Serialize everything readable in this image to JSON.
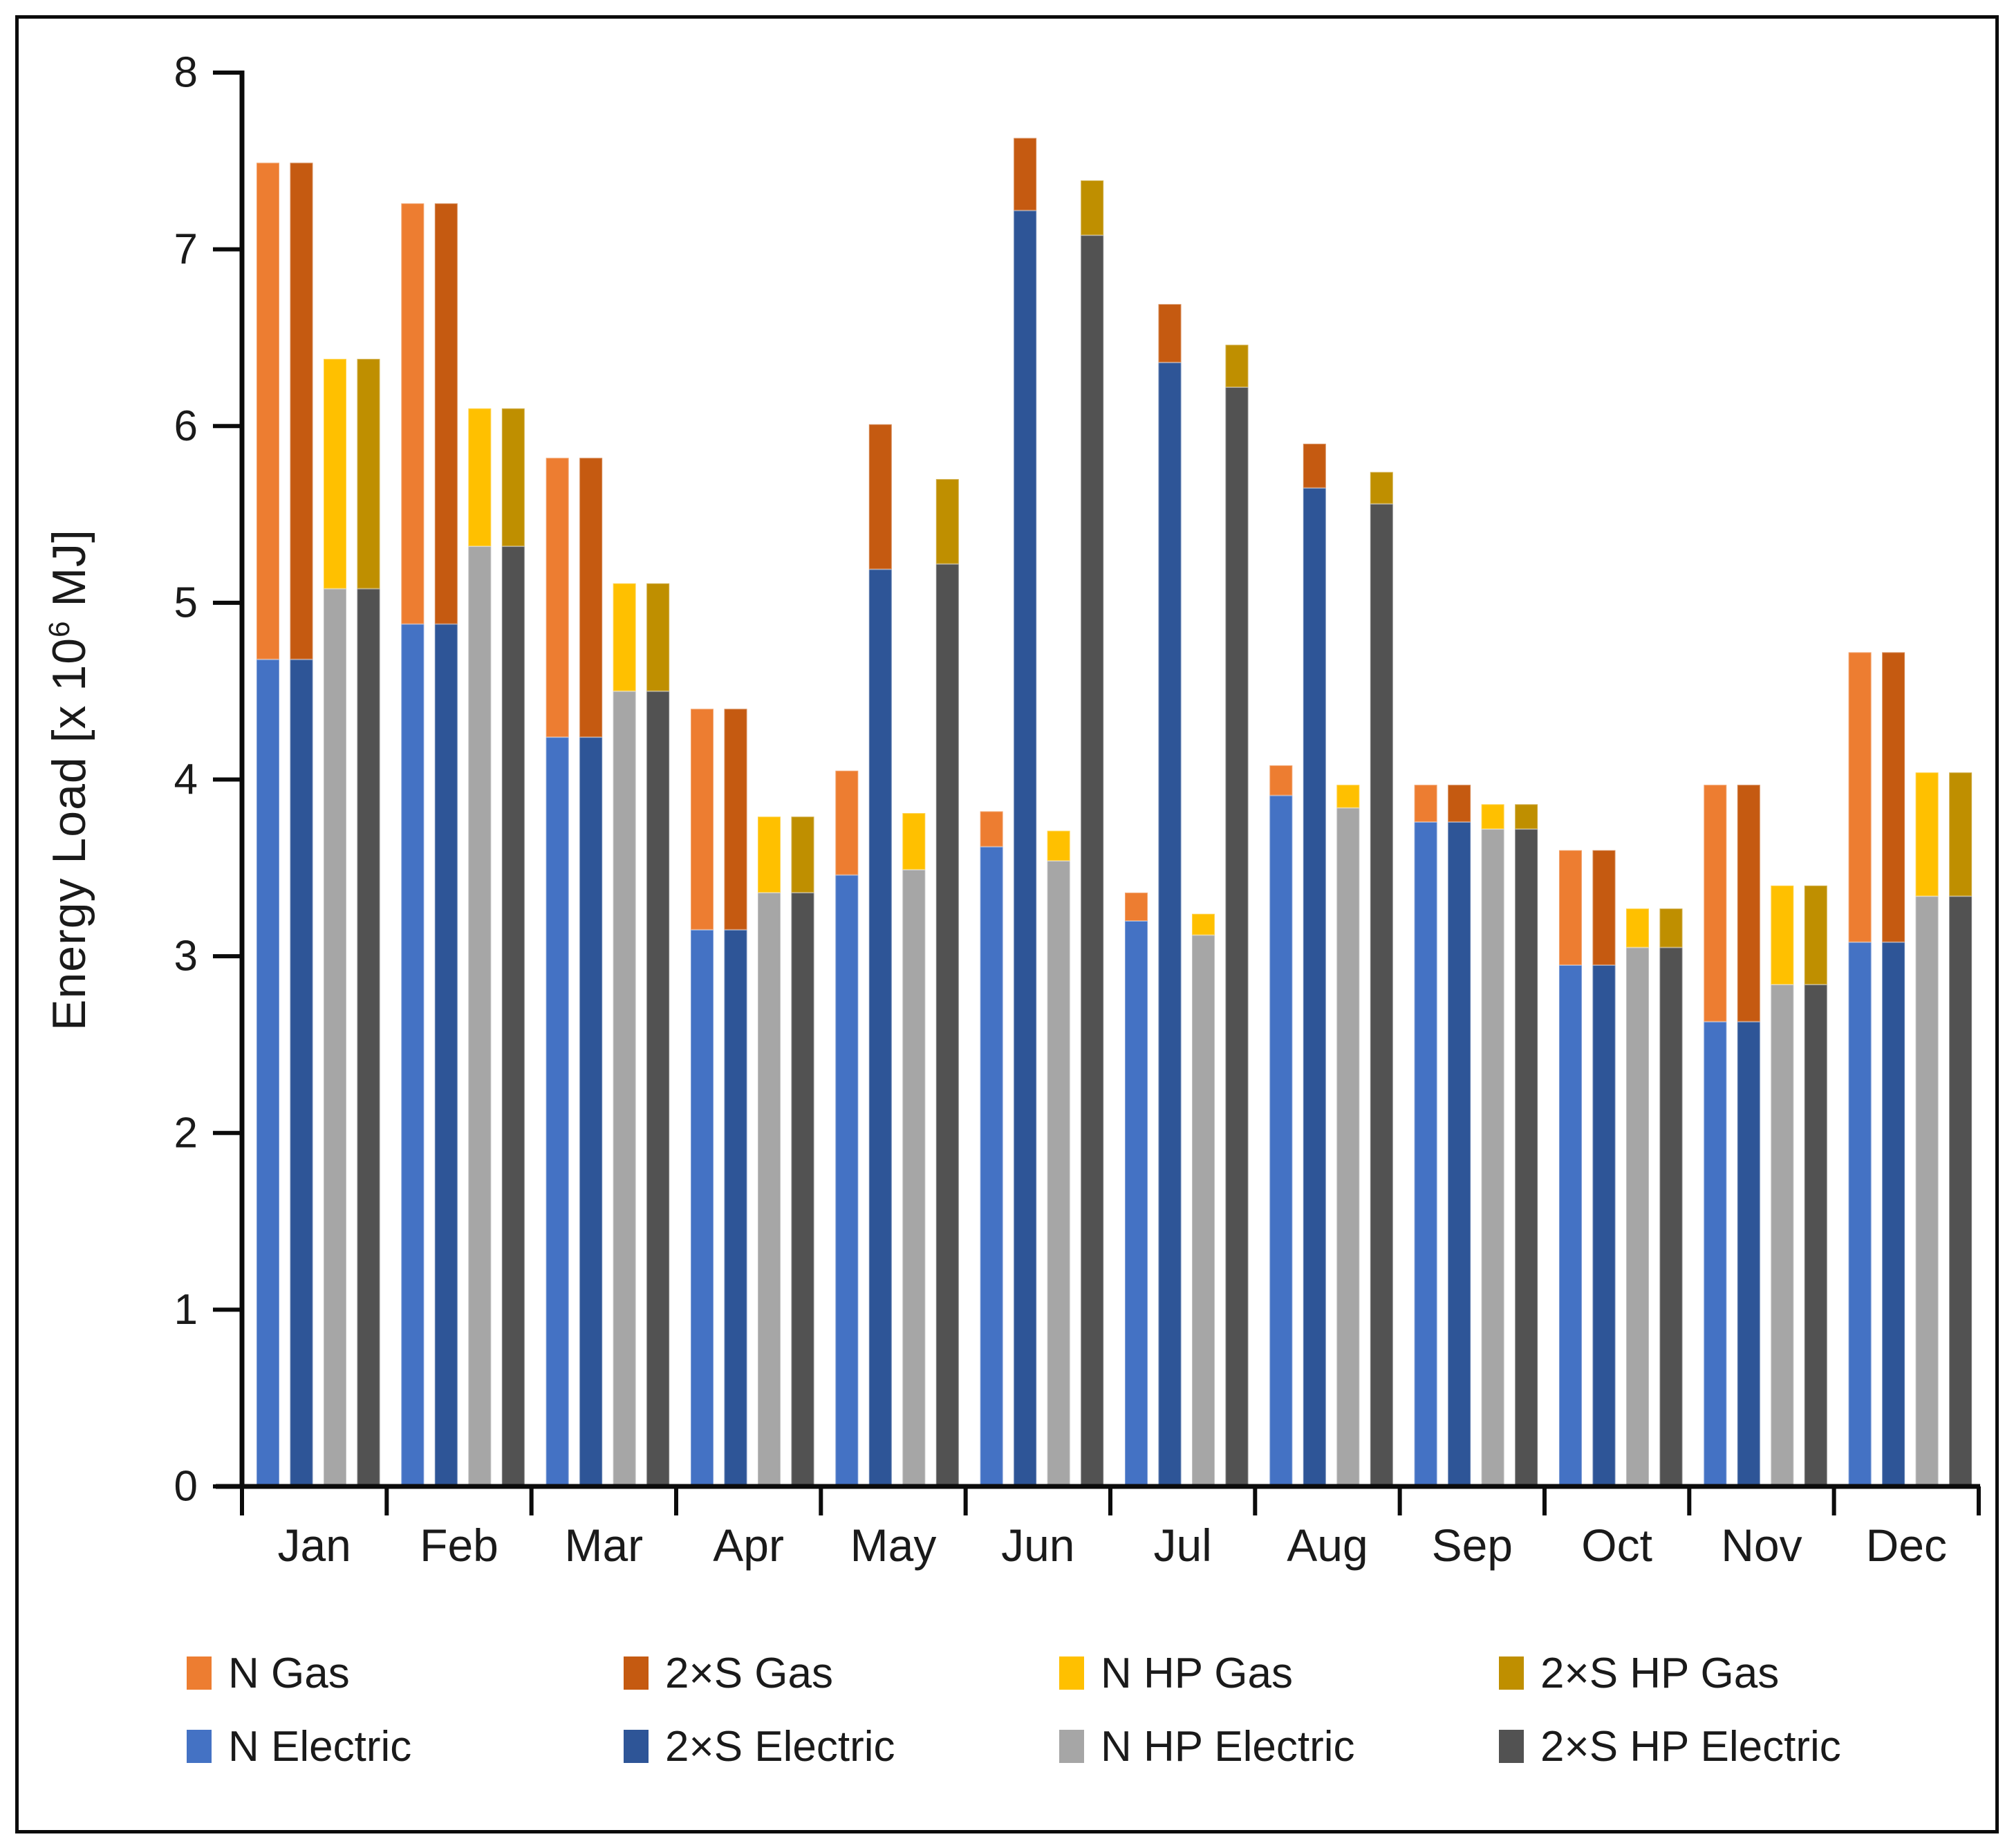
{
  "chart_data": {
    "type": "bar",
    "stacked": true,
    "title": "",
    "ylabel_prefix": "Energy Load [x 10",
    "ylabel_sup": "6",
    "ylabel_suffix": " MJ]",
    "ylim": [
      0,
      8
    ],
    "yticks": [
      0,
      1,
      2,
      3,
      4,
      5,
      6,
      7,
      8
    ],
    "grid": false,
    "legend_position": "bottom",
    "categories": [
      "Jan",
      "Feb",
      "Mar",
      "Apr",
      "May",
      "Jun",
      "Jul",
      "Aug",
      "Sep",
      "Oct",
      "Nov",
      "Dec"
    ],
    "stacks": [
      {
        "bottom": "N Electric",
        "top": "N Gas"
      },
      {
        "bottom": "2×S Electric",
        "top": "2×S Gas"
      },
      {
        "bottom": "N HP Electric",
        "top": "N HP Gas"
      },
      {
        "bottom": "2×S HP Electric",
        "top": "2×S HP Gas"
      }
    ],
    "series": [
      {
        "name": "N Gas",
        "color": "#ED7D31",
        "values": [
          2.81,
          2.38,
          1.58,
          1.25,
          0.59,
          0.2,
          0.16,
          0.17,
          0.21,
          0.65,
          1.34,
          1.64
        ]
      },
      {
        "name": "2×S Gas",
        "color": "#C55A11",
        "values": [
          2.81,
          2.38,
          1.58,
          1.25,
          0.82,
          0.41,
          0.33,
          0.25,
          0.21,
          0.65,
          1.34,
          1.64
        ]
      },
      {
        "name": "N HP Gas",
        "color": "#FFC000",
        "values": [
          1.3,
          0.78,
          0.61,
          0.43,
          0.32,
          0.17,
          0.12,
          0.13,
          0.14,
          0.22,
          0.56,
          0.7
        ]
      },
      {
        "name": "2×S HP Gas",
        "color": "#BF8F00",
        "values": [
          1.3,
          0.78,
          0.61,
          0.43,
          0.48,
          0.31,
          0.24,
          0.18,
          0.14,
          0.22,
          0.56,
          0.7
        ]
      },
      {
        "name": "N Electric",
        "color": "#4472C4",
        "values": [
          4.68,
          4.88,
          4.24,
          3.15,
          3.46,
          3.62,
          3.2,
          3.91,
          3.76,
          2.95,
          2.63,
          3.08
        ]
      },
      {
        "name": "2×S Electric",
        "color": "#2E5597",
        "values": [
          4.68,
          4.88,
          4.24,
          3.15,
          5.19,
          7.22,
          6.36,
          5.65,
          3.76,
          2.95,
          2.63,
          3.08
        ]
      },
      {
        "name": "N HP Electric",
        "color": "#A6A6A6",
        "values": [
          5.08,
          5.32,
          4.5,
          3.36,
          3.49,
          3.54,
          3.12,
          3.84,
          3.72,
          3.05,
          2.84,
          3.34
        ]
      },
      {
        "name": "2×S HP Electric",
        "color": "#525252",
        "values": [
          5.08,
          5.32,
          4.5,
          3.36,
          5.22,
          7.08,
          6.22,
          5.56,
          3.72,
          3.05,
          2.84,
          3.34
        ]
      }
    ],
    "legend_rows": [
      [
        "N Gas",
        "2×S Gas",
        "N HP Gas",
        "2×S HP Gas"
      ],
      [
        "N Electric",
        "2×S Electric",
        "N HP Electric",
        "2×S HP Electric"
      ]
    ]
  }
}
